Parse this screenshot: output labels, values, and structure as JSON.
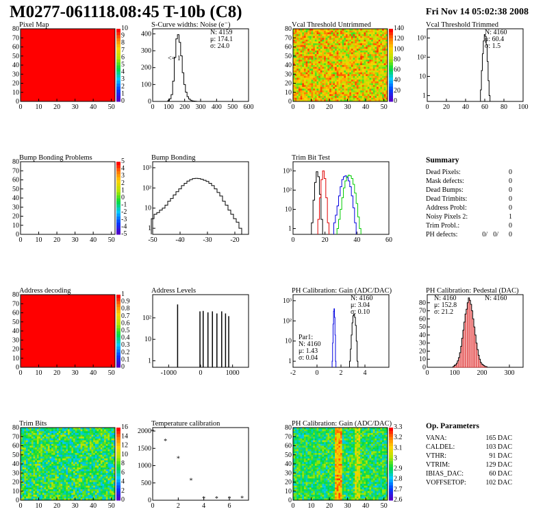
{
  "header": {
    "title": "M0277-061118.08:45 T-10b (C8)",
    "date": "Fri Nov 14 05:02:38 2008"
  },
  "chart_data": [
    {
      "type": "heatmap",
      "title": "Pixel Map",
      "xlim": [
        0,
        52
      ],
      "ylim": [
        0,
        80
      ],
      "xticks": [
        0,
        10,
        20,
        30,
        40,
        50
      ],
      "yticks": [
        0,
        10,
        20,
        30,
        40,
        50,
        60,
        70,
        80
      ],
      "fill": "uniform-red",
      "zlim": [
        0,
        10
      ],
      "zticks": [
        0,
        1,
        2,
        3,
        4,
        5,
        6,
        7,
        8,
        9,
        10
      ]
    },
    {
      "type": "line",
      "title": "S-Curve widths: Noise (e⁻)",
      "xlim": [
        0,
        600
      ],
      "ylim": [
        0,
        430
      ],
      "xticks": [
        0,
        100,
        200,
        300,
        400,
        500,
        600
      ],
      "yticks": [
        0,
        100,
        200,
        300,
        400
      ],
      "stats": [
        "N: 4159",
        "μ: 174.1",
        "σ: 24.0"
      ],
      "annotation": "<= 1",
      "x": [
        100,
        110,
        120,
        130,
        140,
        150,
        160,
        170,
        180,
        190,
        200,
        210,
        220,
        230,
        240,
        250,
        260,
        270,
        280,
        290
      ],
      "values": [
        5,
        15,
        40,
        120,
        260,
        370,
        395,
        350,
        270,
        170,
        100,
        55,
        28,
        14,
        7,
        3,
        2,
        1,
        0,
        0
      ]
    },
    {
      "type": "heatmap",
      "title": "Vcal Threshold Untrimmed",
      "xlim": [
        0,
        52
      ],
      "ylim": [
        0,
        80
      ],
      "xticks": [
        0,
        10,
        20,
        30,
        40,
        50
      ],
      "yticks": [
        0,
        10,
        20,
        30,
        40,
        50,
        60,
        70,
        80
      ],
      "fill": "noise-orange",
      "zlim": [
        0,
        140
      ],
      "zticks": [
        0,
        20,
        40,
        60,
        80,
        100,
        120,
        140
      ]
    },
    {
      "type": "line",
      "title": "Vcal Threshold Trimmed",
      "log": true,
      "xlim": [
        0,
        100
      ],
      "ylim": [
        0.5,
        3000
      ],
      "xticks": [
        0,
        20,
        40,
        60,
        80,
        100
      ],
      "yticks": [
        1,
        10,
        100,
        1000
      ],
      "ytick_labels": [
        "1",
        "10",
        "10²",
        "10³"
      ],
      "stats": [
        "N: 4160",
        "μ: 60.4",
        "σ: 1.5"
      ],
      "x": [
        56,
        57,
        58,
        59,
        60,
        61,
        62,
        63,
        64,
        65
      ],
      "values": [
        2,
        20,
        150,
        700,
        1500,
        1200,
        450,
        60,
        6,
        1
      ]
    },
    {
      "type": "heatmap",
      "title": "Bump Bonding Problems",
      "xlim": [
        0,
        52
      ],
      "ylim": [
        0,
        80
      ],
      "xticks": [
        0,
        10,
        20,
        30,
        40,
        50
      ],
      "yticks": [
        0,
        10,
        20,
        30,
        40,
        50,
        60,
        70,
        80
      ],
      "fill": "empty",
      "zlim": [
        -5,
        5
      ],
      "zticks": [
        -5,
        -4,
        -3,
        -2,
        -1,
        0,
        1,
        2,
        3,
        4,
        5
      ]
    },
    {
      "type": "line",
      "title": "Bump Bonding",
      "log": true,
      "xlim": [
        -50,
        -15
      ],
      "ylim": [
        0.5,
        2000
      ],
      "xticks": [
        -50,
        -40,
        -30,
        -20
      ],
      "yticks": [
        1,
        10,
        100,
        1000
      ],
      "ytick_labels": [
        "1",
        "10",
        "10²",
        "10³"
      ],
      "x": [
        -50,
        -49,
        -48,
        -47,
        -46,
        -45,
        -44,
        -43,
        -42,
        -41,
        -40,
        -39,
        -38,
        -37,
        -36,
        -35,
        -34,
        -33,
        -32,
        -31,
        -30,
        -29,
        -28,
        -27,
        -26,
        -25,
        -24,
        -23,
        -22,
        -21,
        -20,
        -19,
        -18
      ],
      "values": [
        3,
        5,
        6,
        8,
        10,
        14,
        22,
        30,
        45,
        65,
        90,
        130,
        170,
        220,
        260,
        290,
        300,
        290,
        270,
        240,
        210,
        170,
        130,
        90,
        60,
        40,
        22,
        14,
        8,
        5,
        3,
        2,
        1
      ]
    },
    {
      "type": "line",
      "title": "Trim Bit Test",
      "log": true,
      "xlim": [
        0,
        60
      ],
      "ylim": [
        0.5,
        3000
      ],
      "xticks": [
        0,
        20,
        40,
        60
      ],
      "yticks": [
        1,
        10,
        100,
        1000
      ],
      "ytick_labels": [
        "1",
        "10",
        "10²",
        "10³"
      ],
      "series": [
        {
          "color": "#000000",
          "x": [
            12,
            13,
            14,
            15,
            16,
            17,
            18
          ],
          "values": [
            2,
            30,
            250,
            900,
            500,
            60,
            3
          ]
        },
        {
          "color": "#e00000",
          "x": [
            16,
            17,
            18,
            19,
            20,
            21,
            22
          ],
          "values": [
            3,
            40,
            350,
            1000,
            400,
            40,
            2
          ]
        },
        {
          "color": "#0000e0",
          "x": [
            26,
            27,
            28,
            29,
            30,
            31,
            32,
            33,
            34,
            35,
            36,
            37,
            38,
            39
          ],
          "values": [
            2,
            5,
            15,
            50,
            150,
            350,
            500,
            550,
            450,
            300,
            150,
            50,
            12,
            2
          ]
        },
        {
          "color": "#00cc00",
          "x": [
            28,
            29,
            30,
            31,
            32,
            33,
            34,
            35,
            36,
            37,
            38,
            39,
            40,
            41,
            42
          ],
          "values": [
            1,
            3,
            10,
            40,
            130,
            300,
            500,
            600,
            550,
            400,
            200,
            70,
            20,
            4,
            1
          ]
        }
      ]
    },
    {
      "type": "table",
      "title": "Summary",
      "rows": [
        {
          "label": "Dead Pixels:",
          "value": "0"
        },
        {
          "label": "Mask defects:",
          "value": "0"
        },
        {
          "label": "Dead Bumps:",
          "value": "0"
        },
        {
          "label": "Dead Trimbits:",
          "value": "0"
        },
        {
          "label": "Address Probl:",
          "value": "0"
        },
        {
          "label": "Noisy Pixels 2:",
          "value": "1"
        },
        {
          "label": "Trim Probl.:",
          "value": "0"
        }
      ],
      "ph_label": "PH defects:",
      "ph_values": [
        {
          "v": "0/",
          "color": "#000000"
        },
        {
          "v": "0/",
          "color": "#e00000"
        },
        {
          "v": "0",
          "color": "#0000e0"
        }
      ]
    },
    {
      "type": "heatmap",
      "title": "Address decoding",
      "xlim": [
        0,
        52
      ],
      "ylim": [
        0,
        80
      ],
      "xticks": [
        0,
        10,
        20,
        30,
        40,
        50
      ],
      "yticks": [
        0,
        10,
        20,
        30,
        40,
        50,
        60,
        70,
        80
      ],
      "fill": "uniform-red",
      "zlim": [
        0,
        1
      ],
      "zticks": [
        0,
        0.1,
        0.2,
        0.3,
        0.4,
        0.5,
        0.6,
        0.7,
        0.8,
        0.9,
        1
      ]
    },
    {
      "type": "bar",
      "title": "Address Levels",
      "log": true,
      "xlim": [
        -1500,
        1500
      ],
      "ylim": [
        0.5,
        1200
      ],
      "xticks": [
        -1000,
        0,
        1000
      ],
      "yticks": [
        1,
        10,
        100
      ],
      "ytick_labels": [
        "1",
        "10",
        "10²"
      ],
      "x": [
        -720,
        -20,
        80,
        230,
        370,
        510,
        660,
        780,
        880
      ],
      "values": [
        420,
        200,
        210,
        180,
        200,
        160,
        200,
        160,
        120
      ]
    },
    {
      "type": "line",
      "title": "PH Calibration: Gain (ADC/DAC)",
      "log": true,
      "xlim": [
        -2,
        6
      ],
      "ylim": [
        0.5,
        2000
      ],
      "xticks": [
        -2,
        0,
        2,
        4
      ],
      "yticks": [
        1,
        10,
        100,
        1000
      ],
      "ytick_labels": [
        "1",
        "10",
        "10²",
        "10³"
      ],
      "stats": [
        "N: 4160",
        "μ: 3.04",
        "σ: 0.10"
      ],
      "par1_label": "Par1:",
      "par1_stats": [
        "N: 4160",
        "μ: 1.43",
        "σ: 0.04"
      ],
      "series": [
        {
          "color": "#0000e0",
          "x": [
            1.28,
            1.32,
            1.36,
            1.4,
            1.44,
            1.48,
            1.52,
            1.56
          ],
          "values": [
            1,
            8,
            70,
            300,
            400,
            150,
            20,
            1
          ]
        },
        {
          "color": "#000000",
          "x": [
            2.75,
            2.82,
            2.89,
            2.96,
            3.03,
            3.1,
            3.17,
            3.24,
            3.31,
            3.38
          ],
          "values": [
            1,
            4,
            20,
            80,
            180,
            220,
            150,
            60,
            10,
            1
          ]
        }
      ]
    },
    {
      "type": "bar",
      "title": "PH Calibration: Pedestal (DAC)",
      "xlim": [
        0,
        350
      ],
      "ylim": [
        0,
        90
      ],
      "xticks": [
        0,
        100,
        200,
        300
      ],
      "yticks": [
        0,
        10,
        20,
        30,
        40,
        50,
        60,
        70,
        80
      ],
      "stats": [
        "N: 4160"
      ],
      "fit_stats": [
        "μ: 152.8",
        "σ: 21.2"
      ],
      "x": [
        96,
        100,
        104,
        108,
        112,
        116,
        120,
        124,
        128,
        132,
        136,
        140,
        144,
        148,
        152,
        156,
        160,
        164,
        168,
        172,
        176,
        180,
        184,
        188,
        192,
        196,
        200,
        204,
        208,
        212,
        216,
        220
      ],
      "values": [
        1,
        2,
        3,
        5,
        8,
        12,
        18,
        26,
        36,
        46,
        56,
        66,
        72,
        80,
        86,
        83,
        78,
        70,
        60,
        50,
        40,
        30,
        22,
        15,
        10,
        6,
        4,
        3,
        2,
        1,
        1,
        0
      ]
    },
    {
      "type": "heatmap",
      "title": "Trim Bits",
      "xlim": [
        0,
        52
      ],
      "ylim": [
        0,
        80
      ],
      "xticks": [
        0,
        10,
        20,
        30,
        40,
        50
      ],
      "yticks": [
        0,
        10,
        20,
        30,
        40,
        50,
        60,
        70,
        80
      ],
      "fill": "noise-green",
      "zlim": [
        0,
        16
      ],
      "zticks": [
        0,
        2,
        4,
        6,
        8,
        10,
        12,
        14,
        16
      ]
    },
    {
      "type": "scatter",
      "title": "Temperature calibration",
      "xlim": [
        0,
        7.5
      ],
      "ylim": [
        0,
        2100
      ],
      "xticks": [
        0,
        2,
        4,
        6
      ],
      "yticks": [
        0,
        500,
        1000,
        1500,
        2000
      ],
      "x": [
        0,
        1,
        2,
        3,
        4,
        5,
        6,
        7
      ],
      "values": [
        2000,
        1720,
        1220,
        580,
        60,
        55,
        60,
        70
      ]
    },
    {
      "type": "heatmap",
      "title": "PH Calibration: Gain (ADC/DAC)",
      "xlim": [
        0,
        52
      ],
      "ylim": [
        0,
        80
      ],
      "xticks": [
        0,
        10,
        20,
        30,
        40,
        50
      ],
      "yticks": [
        0,
        10,
        20,
        30,
        40,
        50,
        60,
        70,
        80
      ],
      "fill": "noise-gain",
      "zlim": [
        2.6,
        3.3
      ],
      "zticks": [
        2.6,
        2.7,
        2.8,
        2.9,
        3.0,
        3.1,
        3.2,
        3.3
      ]
    },
    {
      "type": "table",
      "title": "Op. Parameters",
      "rows": [
        {
          "label": "VANA:",
          "value": "165 DAC"
        },
        {
          "label": "CALDEL:",
          "value": "103 DAC"
        },
        {
          "label": "VTHR:",
          "value": "91 DAC"
        },
        {
          "label": "VTRIM:",
          "value": "129 DAC"
        },
        {
          "label": "IBIAS_DAC:",
          "value": "60 DAC"
        },
        {
          "label": "VOFFSETOP:",
          "value": "102 DAC"
        }
      ]
    }
  ]
}
